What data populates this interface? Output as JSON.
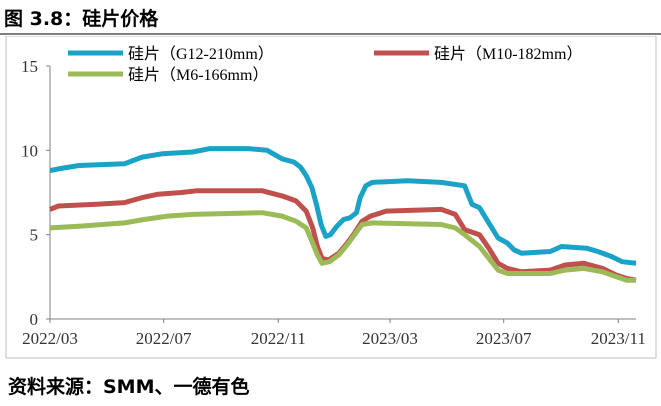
{
  "title": "图 3.8：硅片价格",
  "source": "资料来源：SMM、一德有色",
  "chart_data": {
    "type": "line",
    "ylim": [
      0,
      15
    ],
    "yticks": [
      0,
      5,
      10,
      15
    ],
    "xticks": [
      "2022/03",
      "2022/07",
      "2022/11",
      "2023/03",
      "2023/07",
      "2023/11"
    ],
    "x_range": [
      "2022-03-01",
      "2023-11-20"
    ],
    "grid": false,
    "legend_position": "top-left",
    "series": [
      {
        "name": "硅片（G12-210mm）",
        "color": "#1aa3c7",
        "points": [
          [
            "2022-03-01",
            8.8
          ],
          [
            "2022-03-10",
            8.9
          ],
          [
            "2022-04-01",
            9.1
          ],
          [
            "2022-05-20",
            9.2
          ],
          [
            "2022-06-08",
            9.6
          ],
          [
            "2022-06-30",
            9.8
          ],
          [
            "2022-08-01",
            9.9
          ],
          [
            "2022-08-20",
            10.1
          ],
          [
            "2022-09-30",
            10.1
          ],
          [
            "2022-10-20",
            10.0
          ],
          [
            "2022-11-05",
            9.5
          ],
          [
            "2022-11-18",
            9.3
          ],
          [
            "2022-11-25",
            9.0
          ],
          [
            "2022-12-01",
            8.5
          ],
          [
            "2022-12-07",
            7.8
          ],
          [
            "2022-12-12",
            6.8
          ],
          [
            "2022-12-17",
            5.6
          ],
          [
            "2022-12-22",
            4.9
          ],
          [
            "2022-12-27",
            5.0
          ],
          [
            "2023-01-03",
            5.5
          ],
          [
            "2023-01-10",
            5.9
          ],
          [
            "2023-01-17",
            6.0
          ],
          [
            "2023-01-24",
            6.3
          ],
          [
            "2023-01-28",
            7.2
          ],
          [
            "2023-02-03",
            7.9
          ],
          [
            "2023-02-10",
            8.1
          ],
          [
            "2023-03-20",
            8.2
          ],
          [
            "2023-04-25",
            8.1
          ],
          [
            "2023-05-20",
            7.9
          ],
          [
            "2023-05-28",
            6.8
          ],
          [
            "2023-06-05",
            6.6
          ],
          [
            "2023-06-15",
            5.7
          ],
          [
            "2023-06-25",
            4.8
          ],
          [
            "2023-07-05",
            4.5
          ],
          [
            "2023-07-12",
            4.1
          ],
          [
            "2023-07-20",
            3.9
          ],
          [
            "2023-08-20",
            4.0
          ],
          [
            "2023-09-01",
            4.3
          ],
          [
            "2023-09-28",
            4.2
          ],
          [
            "2023-10-10",
            4.0
          ],
          [
            "2023-10-25",
            3.7
          ],
          [
            "2023-11-05",
            3.4
          ],
          [
            "2023-11-20",
            3.3
          ]
        ]
      },
      {
        "name": "硅片（M10-182mm）",
        "color": "#c0504d",
        "points": [
          [
            "2022-03-01",
            6.5
          ],
          [
            "2022-03-10",
            6.7
          ],
          [
            "2022-04-20",
            6.8
          ],
          [
            "2022-05-20",
            6.9
          ],
          [
            "2022-06-08",
            7.2
          ],
          [
            "2022-06-25",
            7.4
          ],
          [
            "2022-07-20",
            7.5
          ],
          [
            "2022-08-05",
            7.6
          ],
          [
            "2022-10-15",
            7.6
          ],
          [
            "2022-11-05",
            7.3
          ],
          [
            "2022-11-20",
            7.0
          ],
          [
            "2022-12-01",
            6.4
          ],
          [
            "2022-12-08",
            5.4
          ],
          [
            "2022-12-13",
            4.3
          ],
          [
            "2022-12-18",
            3.6
          ],
          [
            "2022-12-25",
            3.5
          ],
          [
            "2023-01-05",
            3.9
          ],
          [
            "2023-01-14",
            4.5
          ],
          [
            "2023-01-22",
            5.1
          ],
          [
            "2023-01-30",
            5.8
          ],
          [
            "2023-02-08",
            6.1
          ],
          [
            "2023-02-25",
            6.4
          ],
          [
            "2023-04-25",
            6.5
          ],
          [
            "2023-05-10",
            6.2
          ],
          [
            "2023-05-20",
            5.3
          ],
          [
            "2023-06-05",
            5.0
          ],
          [
            "2023-06-15",
            4.2
          ],
          [
            "2023-06-25",
            3.3
          ],
          [
            "2023-07-05",
            3.0
          ],
          [
            "2023-07-20",
            2.8
          ],
          [
            "2023-08-20",
            2.9
          ],
          [
            "2023-09-05",
            3.2
          ],
          [
            "2023-09-25",
            3.3
          ],
          [
            "2023-10-15",
            3.0
          ],
          [
            "2023-10-30",
            2.6
          ],
          [
            "2023-11-10",
            2.4
          ],
          [
            "2023-11-20",
            2.3
          ]
        ]
      },
      {
        "name": "硅片（M6-166mm）",
        "color": "#9bbb59",
        "points": [
          [
            "2022-03-01",
            5.4
          ],
          [
            "2022-04-01",
            5.5
          ],
          [
            "2022-05-20",
            5.7
          ],
          [
            "2022-06-10",
            5.9
          ],
          [
            "2022-07-05",
            6.1
          ],
          [
            "2022-08-01",
            6.2
          ],
          [
            "2022-10-15",
            6.3
          ],
          [
            "2022-11-05",
            6.1
          ],
          [
            "2022-11-20",
            5.8
          ],
          [
            "2022-12-01",
            5.4
          ],
          [
            "2022-12-08",
            4.5
          ],
          [
            "2022-12-13",
            3.8
          ],
          [
            "2022-12-18",
            3.3
          ],
          [
            "2022-12-26",
            3.4
          ],
          [
            "2023-01-05",
            3.8
          ],
          [
            "2023-01-14",
            4.4
          ],
          [
            "2023-01-22",
            5.0
          ],
          [
            "2023-01-30",
            5.6
          ],
          [
            "2023-02-10",
            5.7
          ],
          [
            "2023-04-25",
            5.6
          ],
          [
            "2023-05-10",
            5.4
          ],
          [
            "2023-05-20",
            5.0
          ],
          [
            "2023-06-05",
            4.3
          ],
          [
            "2023-06-15",
            3.6
          ],
          [
            "2023-06-25",
            2.9
          ],
          [
            "2023-07-05",
            2.7
          ],
          [
            "2023-08-20",
            2.7
          ],
          [
            "2023-09-05",
            2.9
          ],
          [
            "2023-09-25",
            3.0
          ],
          [
            "2023-10-15",
            2.8
          ],
          [
            "2023-10-30",
            2.5
          ],
          [
            "2023-11-10",
            2.3
          ],
          [
            "2023-11-20",
            2.3
          ]
        ]
      }
    ]
  }
}
